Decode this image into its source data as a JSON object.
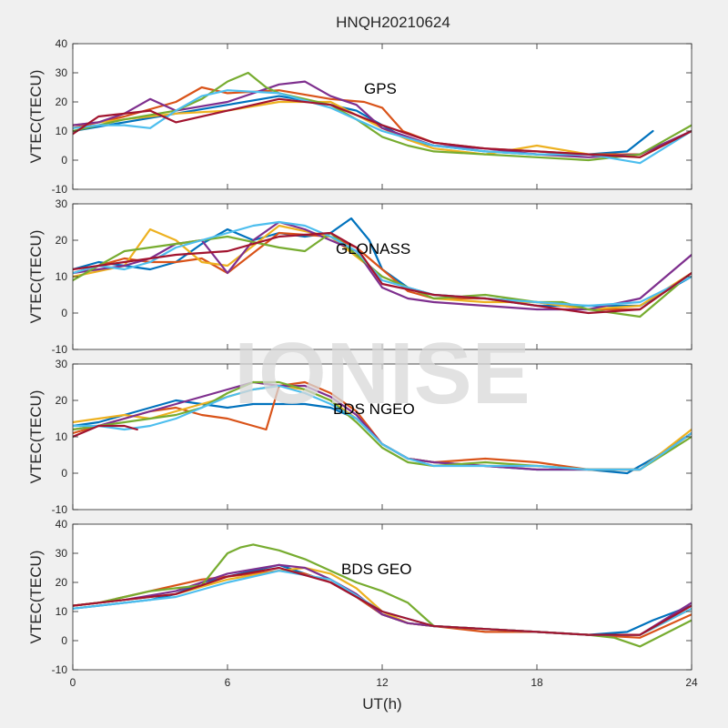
{
  "figure": {
    "title": "HNQH20210624",
    "xlabel": "UT(h)",
    "watermark": "IONISE"
  },
  "chart_data": [
    {
      "type": "line",
      "annotation": "GPS",
      "ylabel": "VTEC(TECU)",
      "xlim": [
        0,
        24
      ],
      "ylim": [
        -10,
        40
      ],
      "xticks": [
        0,
        6,
        12,
        18,
        24
      ],
      "yticks": [
        -10,
        0,
        10,
        20,
        30,
        40
      ],
      "series": [
        {
          "color": "#0072bd",
          "x": [
            0,
            2,
            4,
            6,
            8,
            10,
            11,
            12,
            13,
            14,
            16,
            18,
            20,
            21.5,
            22.5
          ],
          "y": [
            10,
            13,
            16,
            19,
            22,
            19,
            17,
            12,
            7,
            5,
            3,
            2,
            2,
            3,
            10
          ]
        },
        {
          "color": "#d95319",
          "x": [
            0,
            2,
            4,
            5,
            6,
            8,
            10,
            11.3,
            12,
            12.8,
            14,
            16,
            18,
            20,
            22,
            24
          ],
          "y": [
            11,
            15,
            20,
            25,
            23,
            24,
            21,
            20,
            18,
            10,
            6,
            4,
            3,
            2,
            2,
            10
          ]
        },
        {
          "color": "#edb120",
          "x": [
            0,
            2,
            4,
            6,
            8,
            10,
            12,
            13,
            14,
            16,
            18,
            20,
            22,
            24
          ],
          "y": [
            12,
            14,
            16,
            17,
            20,
            20,
            11,
            7,
            4,
            2,
            5,
            2,
            1,
            10
          ]
        },
        {
          "color": "#7e2f8e",
          "x": [
            0,
            1,
            2,
            3,
            4,
            6,
            8,
            9,
            10,
            11,
            12,
            14,
            16,
            18,
            20,
            22,
            24
          ],
          "y": [
            12,
            13,
            16,
            21,
            17,
            20,
            26,
            27,
            22,
            19,
            11,
            5,
            4,
            2,
            1,
            2,
            10
          ]
        },
        {
          "color": "#77ac30",
          "x": [
            0,
            2,
            4,
            5,
            6,
            6.8,
            7.5,
            8,
            10,
            11,
            12,
            13,
            14,
            16,
            18,
            20,
            22,
            24
          ],
          "y": [
            10,
            14,
            17,
            21,
            27,
            30,
            25,
            23,
            19,
            14,
            8,
            5,
            3,
            2,
            1,
            0,
            2,
            12
          ]
        },
        {
          "color": "#4dbeee",
          "x": [
            0,
            1,
            2,
            3,
            4,
            5,
            6,
            8,
            10,
            12,
            14,
            16,
            18,
            20,
            22,
            24
          ],
          "y": [
            11,
            12,
            12,
            11,
            17,
            22,
            24,
            23,
            18,
            10,
            5,
            3,
            2,
            2,
            -1,
            10
          ]
        },
        {
          "color": "#a2142f",
          "x": [
            0,
            1,
            2,
            3,
            4,
            6,
            8,
            10,
            12,
            14,
            16,
            18,
            20,
            22,
            24
          ],
          "y": [
            9,
            15,
            16,
            17,
            13,
            17,
            21,
            19,
            12,
            6,
            4,
            3,
            2,
            1,
            10
          ]
        }
      ]
    },
    {
      "type": "line",
      "annotation": "GLONASS",
      "ylabel": "VTEC(TECU)",
      "xlim": [
        0,
        24
      ],
      "ylim": [
        -10,
        30
      ],
      "xticks": [
        0,
        6,
        12,
        18,
        24
      ],
      "yticks": [
        -10,
        0,
        10,
        20,
        30
      ],
      "series": [
        {
          "color": "#0072bd",
          "x": [
            0,
            1,
            2,
            3,
            4,
            5,
            6,
            7,
            8,
            9,
            10,
            10.8,
            11.5,
            12,
            13,
            14,
            16,
            18,
            20,
            22,
            24
          ],
          "y": [
            12,
            14,
            13,
            12,
            14,
            19,
            23,
            20,
            22,
            21,
            22,
            26,
            20,
            12,
            7,
            5,
            4,
            2,
            2,
            2,
            10
          ]
        },
        {
          "color": "#d95319",
          "x": [
            0,
            1,
            2,
            3,
            4,
            5,
            6,
            8,
            10,
            11,
            12,
            13,
            14,
            16,
            18,
            20,
            22,
            24
          ],
          "y": [
            11,
            13,
            15,
            14,
            14,
            15,
            11,
            22,
            21,
            18,
            12,
            6,
            4,
            4,
            3,
            1,
            1,
            11
          ]
        },
        {
          "color": "#edb120",
          "x": [
            0,
            2,
            3,
            4,
            5,
            6,
            8,
            10,
            12,
            14,
            16,
            18,
            20,
            22,
            24
          ],
          "y": [
            10,
            13,
            23,
            20,
            14,
            13,
            24,
            21,
            10,
            4,
            3,
            3,
            1,
            2,
            11
          ]
        },
        {
          "color": "#7e2f8e",
          "x": [
            0,
            1,
            2,
            3,
            4,
            5,
            6,
            7,
            8,
            9,
            10,
            11,
            12,
            13,
            14,
            16,
            18,
            20,
            22,
            24
          ],
          "y": [
            11,
            12,
            13,
            15,
            19,
            20,
            11,
            20,
            25,
            23,
            20,
            17,
            7,
            4,
            3,
            2,
            1,
            1,
            4,
            16
          ]
        },
        {
          "color": "#77ac30",
          "x": [
            0,
            1,
            2,
            4,
            6,
            8,
            9,
            10,
            12,
            14,
            16,
            18,
            19,
            20,
            22,
            23.5
          ],
          "y": [
            9,
            13,
            17,
            19,
            21,
            18,
            17,
            22,
            10,
            4,
            5,
            3,
            3,
            1,
            -1,
            8
          ]
        },
        {
          "color": "#4dbeee",
          "x": [
            0,
            1,
            2,
            3,
            4,
            5,
            6,
            7,
            8,
            9,
            10,
            11,
            12,
            14,
            16,
            18,
            20,
            22,
            24
          ],
          "y": [
            11,
            13,
            12,
            14,
            18,
            20,
            22,
            24,
            25,
            24,
            21,
            17,
            9,
            5,
            4,
            3,
            2,
            3,
            10
          ]
        },
        {
          "color": "#a2142f",
          "x": [
            0,
            2,
            4,
            6,
            8,
            10,
            11,
            12,
            14,
            16,
            18,
            20,
            22,
            24
          ],
          "y": [
            12,
            14,
            16,
            17,
            21,
            22,
            18,
            8,
            5,
            4,
            2,
            0,
            1,
            11
          ]
        }
      ]
    },
    {
      "type": "line",
      "annotation": "BDS NGEO",
      "ylabel": "VTEC(TECU)",
      "xlim": [
        0,
        24
      ],
      "ylim": [
        -10,
        30
      ],
      "xticks": [
        0,
        6,
        12,
        18,
        24
      ],
      "yticks": [
        -10,
        0,
        10,
        20,
        30
      ],
      "series": [
        {
          "color": "#0072bd",
          "x": [
            0,
            1,
            2,
            3,
            4,
            5,
            6,
            7,
            8,
            9,
            10,
            11,
            12,
            13,
            14,
            16,
            18,
            20,
            21.5,
            22.5,
            24
          ],
          "y": [
            13,
            14,
            16,
            18,
            20,
            19,
            18,
            19,
            19,
            19,
            18,
            15,
            8,
            4,
            3,
            2,
            1,
            1,
            0,
            4,
            11
          ]
        },
        {
          "color": "#d95319",
          "x": [
            0,
            1,
            2,
            3,
            4,
            5,
            6,
            7,
            7.5,
            8,
            9,
            10,
            11,
            12,
            13,
            14,
            16,
            18,
            20,
            22,
            24
          ],
          "y": [
            11,
            13,
            15,
            17,
            18,
            16,
            15,
            13,
            12,
            24,
            25,
            22,
            17,
            8,
            4,
            3,
            4,
            3,
            1,
            1,
            11
          ]
        },
        {
          "color": "#edb120",
          "x": [
            0,
            1,
            2,
            3,
            4,
            5,
            6,
            7,
            8,
            9,
            10,
            11,
            12,
            13,
            14,
            16,
            18,
            20,
            22,
            24
          ],
          "y": [
            14,
            15,
            16,
            15,
            17,
            19,
            21,
            23,
            24,
            23,
            20,
            15,
            8,
            4,
            3,
            2,
            2,
            1,
            1,
            12
          ]
        },
        {
          "color": "#7e2f8e",
          "x": [
            0,
            1,
            2,
            3,
            4,
            5,
            6,
            7,
            8,
            9,
            10,
            11,
            12,
            13,
            14,
            16,
            18,
            20,
            22,
            24
          ],
          "y": [
            12,
            13,
            15,
            17,
            19,
            21,
            23,
            25,
            24,
            24,
            21,
            16,
            8,
            4,
            3,
            2,
            1,
            1,
            1,
            11
          ]
        },
        {
          "color": "#77ac30",
          "x": [
            0,
            1,
            2,
            3,
            4,
            5,
            6,
            7,
            8,
            9,
            10,
            11,
            12,
            13,
            14,
            16,
            18,
            20,
            22,
            24
          ],
          "y": [
            12,
            13,
            14,
            15,
            16,
            18,
            22,
            25,
            25,
            23,
            20,
            14,
            7,
            3,
            2,
            3,
            2,
            1,
            1,
            10
          ]
        },
        {
          "color": "#4dbeee",
          "x": [
            0,
            1,
            2,
            3,
            4,
            5,
            6,
            7,
            8,
            9,
            10,
            11,
            12,
            13,
            14,
            16,
            18,
            20,
            22,
            24
          ],
          "y": [
            13,
            13,
            12,
            13,
            15,
            18,
            21,
            23,
            24,
            22,
            19,
            15,
            8,
            4,
            2,
            2,
            2,
            1,
            1,
            11
          ]
        },
        {
          "color": "#a2142f",
          "x": [
            0,
            1,
            2,
            2.5
          ],
          "y": [
            10,
            13,
            13,
            12
          ]
        }
      ]
    },
    {
      "type": "line",
      "annotation": "BDS GEO",
      "ylabel": "VTEC(TECU)",
      "xlim": [
        0,
        24
      ],
      "ylim": [
        -10,
        40
      ],
      "xticks": [
        0,
        6,
        12,
        18,
        24
      ],
      "yticks": [
        -10,
        0,
        10,
        20,
        30,
        40
      ],
      "series": [
        {
          "color": "#0072bd",
          "x": [
            0,
            1,
            2,
            3,
            4,
            5,
            6,
            7,
            8,
            9,
            10,
            11,
            12,
            13,
            14,
            16,
            18,
            20,
            21.5,
            22.5,
            24
          ],
          "y": [
            11,
            12,
            13,
            14,
            16,
            20,
            22,
            24,
            26,
            23,
            20,
            15,
            9,
            6,
            5,
            4,
            3,
            2,
            3,
            7,
            12
          ]
        },
        {
          "color": "#d95319",
          "x": [
            0,
            1,
            2,
            3,
            4,
            5,
            6,
            7,
            8,
            9,
            10,
            11,
            12,
            13,
            14,
            16,
            18,
            20,
            22,
            24
          ],
          "y": [
            12,
            13,
            15,
            17,
            19,
            21,
            22,
            23,
            24,
            23,
            20,
            15,
            9,
            6,
            5,
            3,
            3,
            2,
            1,
            9
          ]
        },
        {
          "color": "#edb120",
          "x": [
            0,
            2,
            4,
            6,
            8,
            9,
            10,
            11,
            12,
            13,
            14,
            16,
            18,
            20,
            22,
            24
          ],
          "y": [
            12,
            14,
            16,
            21,
            24,
            25,
            23,
            18,
            10,
            6,
            5,
            4,
            3,
            2,
            2,
            11
          ]
        },
        {
          "color": "#7e2f8e",
          "x": [
            0,
            2,
            4,
            6,
            8,
            9,
            10,
            11,
            12,
            13,
            14,
            16,
            18,
            20,
            22,
            24
          ],
          "y": [
            12,
            14,
            17,
            23,
            26,
            25,
            21,
            16,
            9,
            6,
            5,
            4,
            3,
            2,
            2,
            13
          ]
        },
        {
          "color": "#77ac30",
          "x": [
            0,
            1,
            2,
            3,
            4,
            5,
            6,
            6.5,
            7,
            8,
            9,
            10,
            11,
            12,
            13,
            14,
            16,
            18,
            20,
            21,
            22,
            24
          ],
          "y": [
            12,
            13,
            15,
            17,
            18,
            19,
            30,
            32,
            33,
            31,
            28,
            24,
            20,
            17,
            13,
            5,
            4,
            3,
            2,
            1,
            -2,
            7
          ]
        },
        {
          "color": "#4dbeee",
          "x": [
            0,
            2,
            4,
            6,
            8,
            10,
            12,
            14,
            16,
            18,
            20,
            22,
            24
          ],
          "y": [
            11,
            13,
            15,
            20,
            24,
            21,
            10,
            5,
            4,
            3,
            2,
            2,
            11
          ]
        },
        {
          "color": "#a2142f",
          "x": [
            0,
            2,
            4,
            6,
            8,
            10,
            12,
            14,
            16,
            18,
            20,
            22,
            24
          ],
          "y": [
            12,
            14,
            16,
            22,
            25,
            20,
            10,
            5,
            4,
            3,
            2,
            2,
            12
          ]
        }
      ]
    }
  ]
}
